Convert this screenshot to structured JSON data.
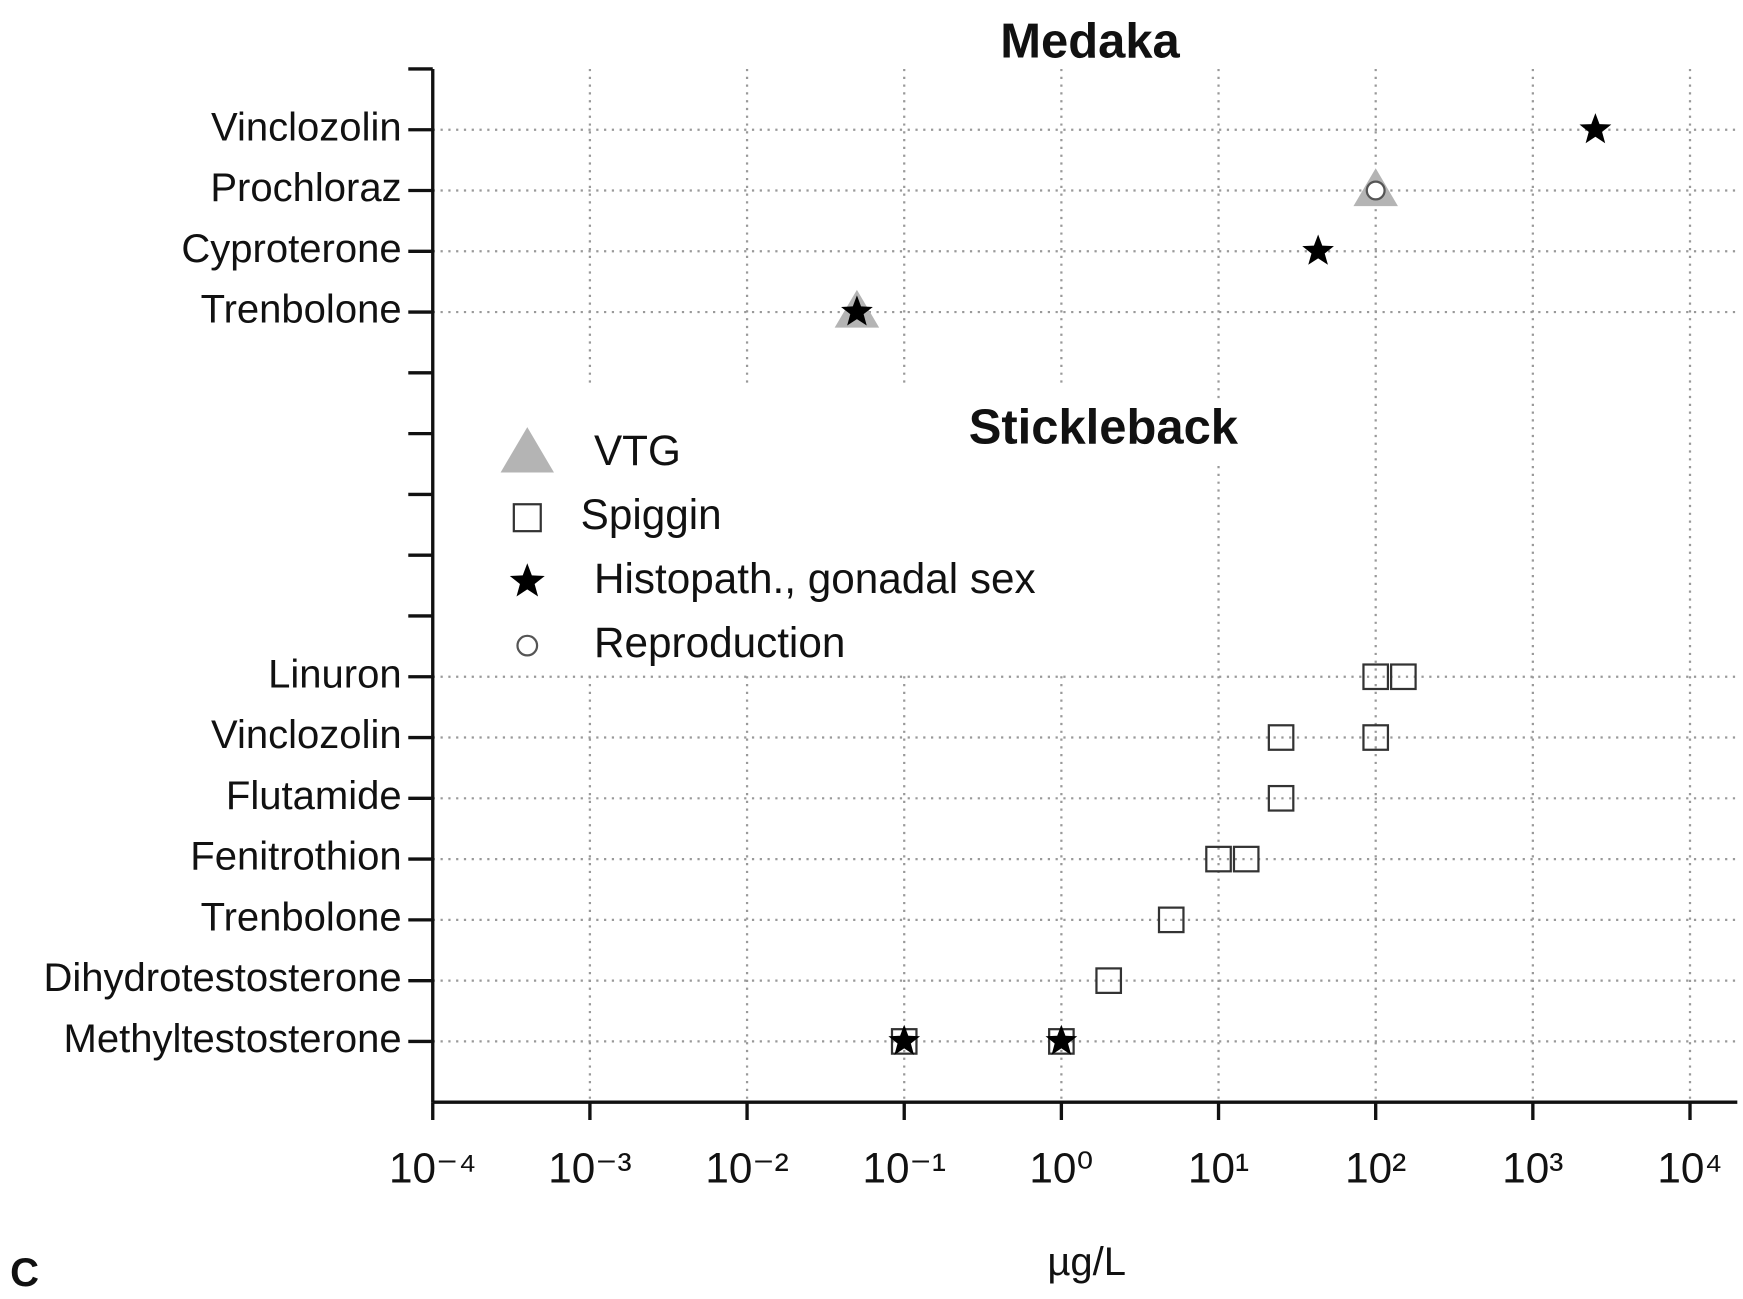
{
  "chart_data": {
    "type": "scatter",
    "title": "Medaka",
    "annotations": [
      "Stickleback",
      "C"
    ],
    "xlabel": "µg/L",
    "xscale": "log",
    "xlim": [
      0.0001,
      20000
    ],
    "xticks": [
      {
        "value": 0.0001,
        "label": "10⁻⁴"
      },
      {
        "value": 0.001,
        "label": "10⁻³"
      },
      {
        "value": 0.01,
        "label": "10⁻²"
      },
      {
        "value": 0.1,
        "label": "10⁻¹"
      },
      {
        "value": 1,
        "label": "10⁰"
      },
      {
        "value": 10,
        "label": "10¹"
      },
      {
        "value": 100,
        "label": "10²"
      },
      {
        "value": 1000,
        "label": "10³"
      },
      {
        "value": 10000,
        "label": "10⁴"
      }
    ],
    "categories": [
      "Vinclozolin",
      "Prochloraz",
      "Cyproterone",
      "Trenbolone",
      null,
      null,
      null,
      null,
      null,
      "Linuron",
      "Vinclozolin",
      "Flutamide",
      "Fenitrothion",
      "Trenbolone",
      "Dihydrotestosterone",
      "Methyltestosterone"
    ],
    "grid": true,
    "legend": "left",
    "series": [
      {
        "name": "VTG",
        "marker": "triangle",
        "color": "#b4b4b4",
        "x": [
          100,
          0.05
        ],
        "y": [
          1,
          3
        ]
      },
      {
        "name": "Spiggin",
        "marker": "square",
        "color": "#333333",
        "x": [
          100,
          150,
          25,
          100,
          25,
          10,
          15,
          5,
          2,
          0.1,
          1
        ],
        "y": [
          9,
          9,
          10,
          10,
          11,
          12,
          12,
          13,
          14,
          15,
          15
        ]
      },
      {
        "name": "Histopath., gonadal sex",
        "marker": "star",
        "color": "#000000",
        "x": [
          2500,
          43,
          0.05,
          0.1,
          1
        ],
        "y": [
          0,
          2,
          3,
          15,
          15
        ]
      },
      {
        "name": "Reproduction",
        "marker": "circle",
        "color": "#555555",
        "x": [
          100
        ],
        "y": [
          1
        ]
      }
    ]
  }
}
